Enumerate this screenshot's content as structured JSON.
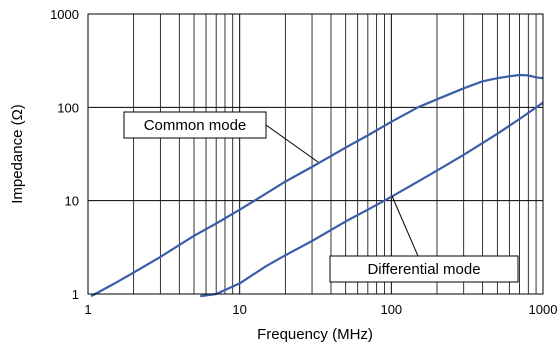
{
  "chart_data": {
    "type": "line",
    "title": "",
    "xlabel": "Frequency (MHz)",
    "ylabel": "Impedance  (Ω)",
    "xscale": "log",
    "yscale": "log",
    "xlim": [
      1,
      1000
    ],
    "ylim": [
      1,
      1000
    ],
    "grid": true,
    "x_tick_labels": [
      "1",
      "10",
      "100",
      "1000"
    ],
    "y_tick_labels": [
      "1",
      "10",
      "100",
      "1000"
    ],
    "line_color": "#3a5ea8",
    "series": [
      {
        "name": "Common mode",
        "x": [
          1.05,
          1.5,
          2,
          3,
          5,
          7,
          10,
          15,
          20,
          30,
          50,
          70,
          100,
          150,
          200,
          300,
          400,
          500,
          600,
          700,
          800,
          900,
          1000
        ],
        "y": [
          0.95,
          1.3,
          1.7,
          2.5,
          4.2,
          5.7,
          8,
          12,
          16,
          23,
          37,
          50,
          70,
          100,
          122,
          160,
          190,
          205,
          215,
          222,
          220,
          210,
          205
        ]
      },
      {
        "name": "Differential mode",
        "x": [
          5.5,
          7,
          10,
          15,
          20,
          30,
          50,
          70,
          100,
          150,
          200,
          300,
          500,
          700,
          1000
        ],
        "y": [
          0.95,
          1.0,
          1.3,
          2.0,
          2.6,
          3.7,
          6,
          8,
          11,
          16,
          21,
          31,
          52,
          75,
          112
        ]
      }
    ],
    "annotations": [
      {
        "text": "Common mode",
        "series": 0
      },
      {
        "text": "Differential mode",
        "series": 1
      }
    ]
  }
}
